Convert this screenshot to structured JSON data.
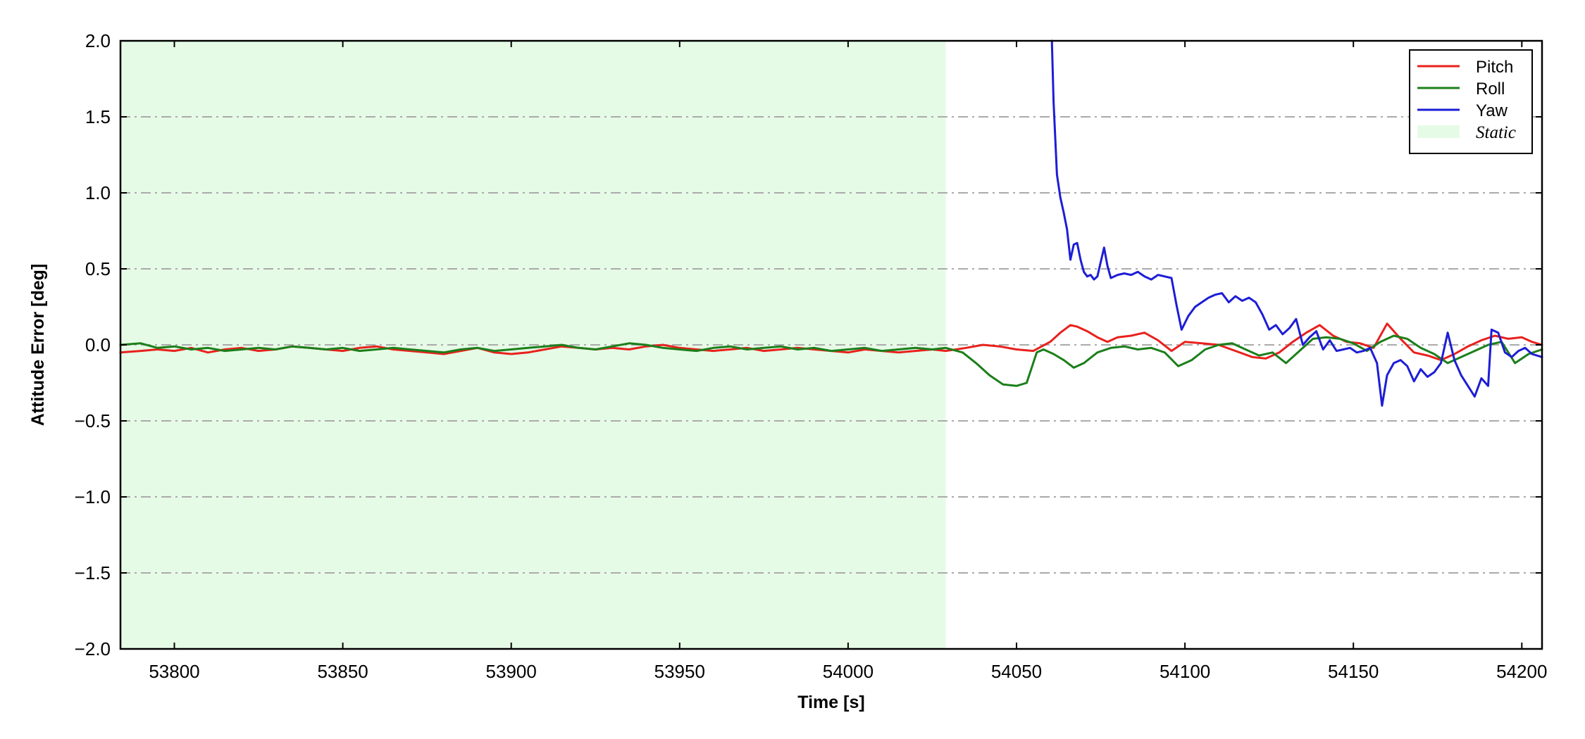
{
  "chart_data": {
    "type": "line",
    "title": "",
    "xlabel": "Time [s]",
    "ylabel": "Attitude Error [deg]",
    "xlim": [
      53784,
      54206
    ],
    "ylim": [
      -2.0,
      2.0
    ],
    "xticks": [
      53800,
      53850,
      53900,
      53950,
      54000,
      54050,
      54100,
      54150,
      54200
    ],
    "xtick_labels": [
      "53800",
      "53850",
      "53900",
      "53950",
      "54000",
      "54050",
      "54100",
      "54150",
      "54200"
    ],
    "yticks": [
      -2.0,
      -1.5,
      -1.0,
      -0.5,
      0.0,
      0.5,
      1.0,
      1.5,
      2.0
    ],
    "ytick_labels": [
      "−2.0",
      "−1.5",
      "−1.0",
      "−0.5",
      "0.0",
      "0.5",
      "1.0",
      "1.5",
      "2.0"
    ],
    "grid": "horizontal dash-dot",
    "legend_position": "top-right",
    "shaded_region": {
      "label": "Static",
      "x_start": 53784,
      "x_end": 54029,
      "color": "#e6fbe6"
    },
    "series": [
      {
        "name": "Pitch",
        "color": "#e8211d",
        "x": [
          53784,
          53790,
          53795,
          53800,
          53805,
          53810,
          53815,
          53820,
          53825,
          53830,
          53835,
          53840,
          53845,
          53850,
          53855,
          53860,
          53865,
          53870,
          53875,
          53880,
          53885,
          53890,
          53895,
          53900,
          53905,
          53910,
          53915,
          53920,
          53925,
          53930,
          53935,
          53940,
          53945,
          53950,
          53955,
          53960,
          53965,
          53970,
          53975,
          53980,
          53985,
          53990,
          53995,
          54000,
          54005,
          54010,
          54015,
          54020,
          54025,
          54029,
          54035,
          54040,
          54045,
          54050,
          54055,
          54060,
          54063,
          54066,
          54068,
          54071,
          54074,
          54077,
          54080,
          54084,
          54088,
          54092,
          54096,
          54100,
          54105,
          54110,
          54115,
          54120,
          54124,
          54128,
          54132,
          54136,
          54140,
          54144,
          54148,
          54152,
          54156,
          54160,
          54164,
          54168,
          54172,
          54176,
          54180,
          54184,
          54188,
          54192,
          54196,
          54200,
          54203,
          54206
        ],
        "y": [
          -0.05,
          -0.04,
          -0.03,
          -0.04,
          -0.02,
          -0.05,
          -0.03,
          -0.02,
          -0.04,
          -0.03,
          -0.01,
          -0.02,
          -0.03,
          -0.04,
          -0.02,
          -0.01,
          -0.03,
          -0.04,
          -0.05,
          -0.06,
          -0.04,
          -0.02,
          -0.05,
          -0.06,
          -0.05,
          -0.03,
          -0.01,
          -0.02,
          -0.03,
          -0.02,
          -0.03,
          -0.01,
          0.0,
          -0.02,
          -0.03,
          -0.04,
          -0.03,
          -0.02,
          -0.04,
          -0.03,
          -0.02,
          -0.03,
          -0.04,
          -0.05,
          -0.03,
          -0.04,
          -0.05,
          -0.04,
          -0.03,
          -0.04,
          -0.02,
          0.0,
          -0.01,
          -0.03,
          -0.04,
          0.02,
          0.08,
          0.13,
          0.12,
          0.09,
          0.05,
          0.02,
          0.05,
          0.06,
          0.08,
          0.03,
          -0.04,
          0.02,
          0.01,
          0.0,
          -0.04,
          -0.08,
          -0.09,
          -0.05,
          0.02,
          0.08,
          0.13,
          0.06,
          0.02,
          0.01,
          -0.02,
          0.14,
          0.04,
          -0.05,
          -0.07,
          -0.1,
          -0.06,
          -0.01,
          0.03,
          0.06,
          0.04,
          0.05,
          0.02,
          0.0
        ]
      },
      {
        "name": "Roll",
        "color": "#1b7f1b",
        "x": [
          53784,
          53790,
          53795,
          53800,
          53805,
          53810,
          53815,
          53820,
          53825,
          53830,
          53835,
          53840,
          53845,
          53850,
          53855,
          53860,
          53865,
          53870,
          53875,
          53880,
          53885,
          53890,
          53895,
          53900,
          53905,
          53910,
          53915,
          53920,
          53925,
          53930,
          53935,
          53940,
          53945,
          53950,
          53955,
          53960,
          53965,
          53970,
          53975,
          53980,
          53985,
          53990,
          53995,
          54000,
          54005,
          54010,
          54015,
          54020,
          54025,
          54029,
          54034,
          54038,
          54042,
          54046,
          54050,
          54053,
          54056,
          54058,
          54061,
          54064,
          54067,
          54070,
          54074,
          54078,
          54082,
          54086,
          54090,
          54094,
          54098,
          54102,
          54106,
          54110,
          54114,
          54118,
          54122,
          54126,
          54130,
          54134,
          54138,
          54142,
          54146,
          54150,
          54154,
          54158,
          54162,
          54166,
          54170,
          54174,
          54178,
          54182,
          54186,
          54190,
          54194,
          54198,
          54202,
          54206
        ],
        "y": [
          0.0,
          0.01,
          -0.02,
          -0.01,
          -0.03,
          -0.02,
          -0.04,
          -0.03,
          -0.02,
          -0.03,
          -0.01,
          -0.02,
          -0.03,
          -0.02,
          -0.04,
          -0.03,
          -0.02,
          -0.03,
          -0.04,
          -0.05,
          -0.03,
          -0.02,
          -0.04,
          -0.03,
          -0.02,
          -0.01,
          0.0,
          -0.02,
          -0.03,
          -0.01,
          0.01,
          0.0,
          -0.02,
          -0.03,
          -0.04,
          -0.02,
          -0.01,
          -0.03,
          -0.02,
          -0.01,
          -0.03,
          -0.02,
          -0.04,
          -0.03,
          -0.02,
          -0.04,
          -0.03,
          -0.02,
          -0.03,
          -0.02,
          -0.05,
          -0.12,
          -0.2,
          -0.26,
          -0.27,
          -0.25,
          -0.05,
          -0.03,
          -0.06,
          -0.1,
          -0.15,
          -0.12,
          -0.05,
          -0.02,
          -0.01,
          -0.03,
          -0.02,
          -0.05,
          -0.14,
          -0.1,
          -0.03,
          0.0,
          0.01,
          -0.03,
          -0.07,
          -0.05,
          -0.12,
          -0.04,
          0.04,
          0.05,
          0.04,
          0.01,
          -0.04,
          0.02,
          0.06,
          0.04,
          -0.02,
          -0.06,
          -0.12,
          -0.08,
          -0.04,
          0.0,
          0.02,
          -0.12,
          -0.06,
          -0.03
        ]
      },
      {
        "name": "Yaw",
        "color": "#1d1dd6",
        "x": [
          54060.5,
          54061,
          54062,
          54063,
          54064,
          54065,
          54066,
          54067,
          54068,
          54069,
          54070,
          54071,
          54072,
          54073,
          54074,
          54076,
          54077,
          54078,
          54080,
          54082,
          54084,
          54086,
          54088,
          54090,
          54092,
          54094,
          54096,
          54097.5,
          54099,
          54101,
          54103,
          54105,
          54107,
          54109,
          54111,
          54113,
          54115,
          54117,
          54119,
          54121,
          54123,
          54125,
          54127,
          54129,
          54131,
          54133,
          54135,
          54137,
          54139,
          54141,
          54143,
          54145,
          54147,
          54149,
          54151,
          54153,
          54155,
          54157,
          54158.5,
          54160,
          54162,
          54164,
          54166,
          54168,
          54170,
          54172,
          54174,
          54176,
          54178,
          54180,
          54182,
          54184,
          54186,
          54188,
          54190,
          54191,
          54193,
          54195,
          54197,
          54199,
          54201,
          54203,
          54206
        ],
        "y": [
          2.0,
          1.6,
          1.12,
          0.97,
          0.87,
          0.76,
          0.56,
          0.66,
          0.67,
          0.56,
          0.48,
          0.45,
          0.46,
          0.43,
          0.45,
          0.64,
          0.52,
          0.44,
          0.46,
          0.47,
          0.46,
          0.48,
          0.45,
          0.43,
          0.46,
          0.45,
          0.44,
          0.26,
          0.1,
          0.19,
          0.25,
          0.28,
          0.31,
          0.33,
          0.34,
          0.28,
          0.32,
          0.29,
          0.31,
          0.28,
          0.2,
          0.1,
          0.13,
          0.07,
          0.11,
          0.17,
          0.0,
          0.05,
          0.09,
          -0.03,
          0.03,
          -0.04,
          -0.03,
          -0.02,
          -0.05,
          -0.04,
          -0.02,
          -0.12,
          -0.4,
          -0.2,
          -0.12,
          -0.1,
          -0.14,
          -0.24,
          -0.16,
          -0.21,
          -0.18,
          -0.12,
          0.08,
          -0.1,
          -0.2,
          -0.27,
          -0.34,
          -0.22,
          -0.27,
          0.1,
          0.08,
          -0.05,
          -0.08,
          -0.04,
          -0.02,
          -0.06,
          -0.08
        ]
      }
    ]
  }
}
